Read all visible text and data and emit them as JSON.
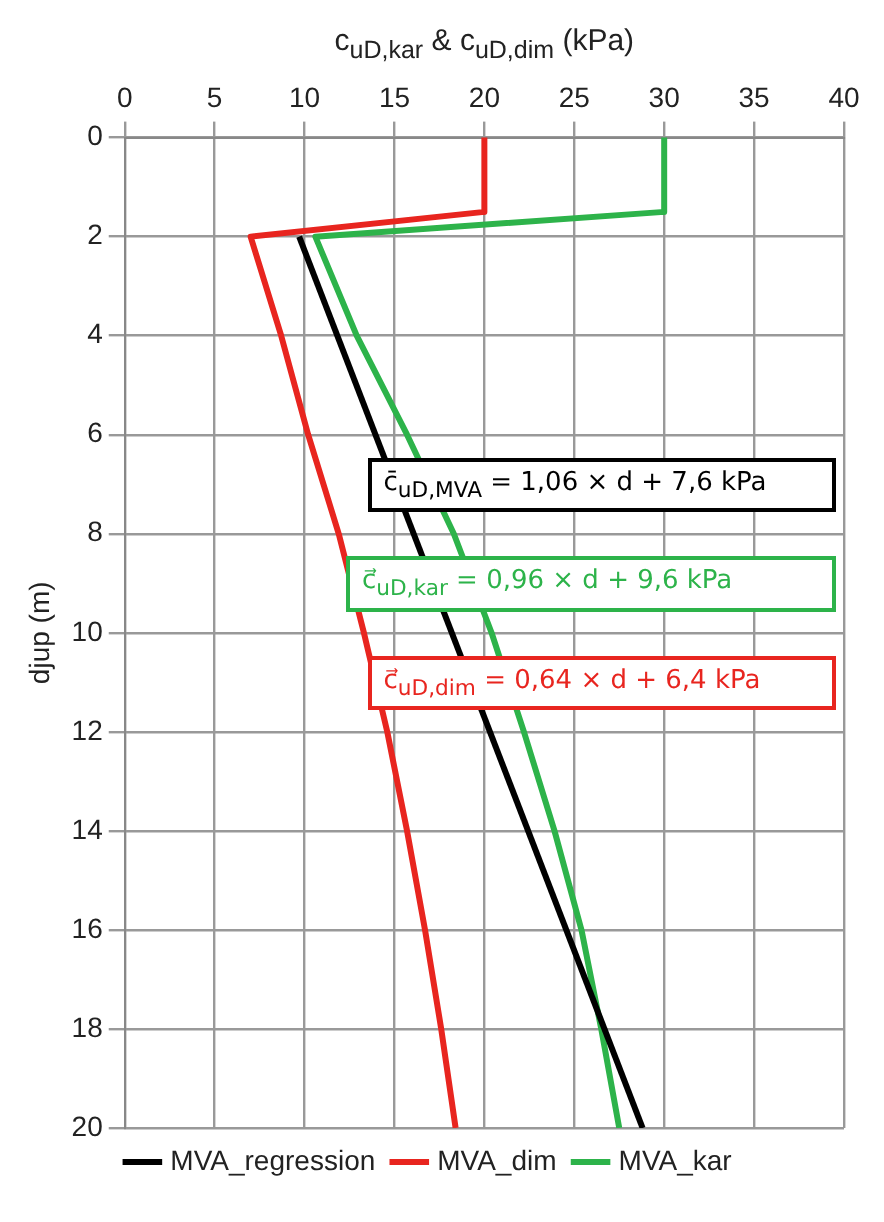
{
  "chart_data": {
    "type": "line",
    "xlabel": "c$_{uD,kar}$ & c$_{uD,dim}$ (kPa)",
    "ylabel": "djup (m)",
    "xlim": [
      0,
      40
    ],
    "xticks": [
      0,
      5,
      10,
      15,
      20,
      25,
      30,
      35,
      40
    ],
    "ylim": [
      20,
      0
    ],
    "yticks": [
      0,
      2,
      4,
      6,
      8,
      10,
      12,
      14,
      16,
      18,
      20
    ],
    "grid": true,
    "legend": "bottom",
    "marker": "none",
    "line_style": "solid",
    "series": [
      {
        "name": "MVA_regression",
        "color": "#000000",
        "x": [
          9.7,
          28.8
        ],
        "values": [
          2,
          20
        ]
      },
      {
        "name": "MVA_dim",
        "color": "#e8251f",
        "x": [
          20,
          20,
          7,
          8.7,
          10.2,
          11.9,
          13.3,
          14.6,
          15.7,
          16.7,
          17.6,
          18.4
        ],
        "values": [
          0,
          1.5,
          2,
          4,
          6,
          8,
          10,
          12,
          14,
          16,
          18,
          20
        ]
      },
      {
        "name": "MVA_kar",
        "color": "#2db34a",
        "x": [
          30,
          30,
          10.6,
          12.9,
          15.7,
          18.3,
          20.4,
          22.2,
          23.9,
          25.4,
          26.5,
          27.5
        ],
        "values": [
          0,
          1.5,
          2,
          4,
          6,
          8,
          10,
          12,
          14,
          16,
          18,
          20
        ]
      }
    ],
    "annotations": [
      "c̄$_{uD,MVA}$ = 1,06 × d + 7,6 kPa",
      "c⃗$_{uD,kar}$ = 0,96 × d + 9,6 kPa",
      "c⃗$_{uD,dim}$ = 0,64 × d + 6,4 kPa"
    ]
  }
}
